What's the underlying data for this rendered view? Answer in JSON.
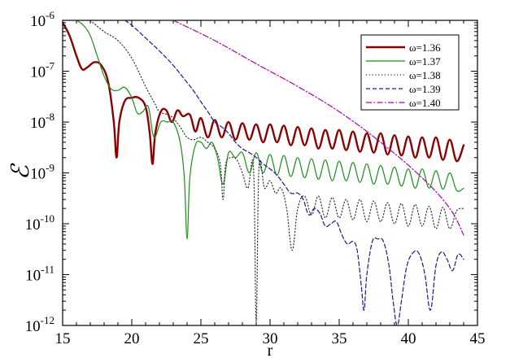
{
  "chart_data": {
    "type": "line",
    "title": "",
    "xlabel": "r",
    "ylabel": "ℰ",
    "xlim": [
      15,
      45
    ],
    "ylim": [
      1e-12,
      1e-06
    ],
    "yscale": "log",
    "grid": false,
    "legend_position": "top-right",
    "x_ticks": [
      {
        "value": 15,
        "label": "15"
      },
      {
        "value": 20,
        "label": "20"
      },
      {
        "value": 25,
        "label": "25"
      },
      {
        "value": 30,
        "label": "30"
      },
      {
        "value": 35,
        "label": "35"
      },
      {
        "value": 40,
        "label": "40"
      },
      {
        "value": 45,
        "label": "45"
      }
    ],
    "y_ticks": [
      {
        "value": 1e-12,
        "base": "10",
        "exp": "-12"
      },
      {
        "value": 1e-11,
        "base": "10",
        "exp": "-11"
      },
      {
        "value": 1e-10,
        "base": "10",
        "exp": "-10"
      },
      {
        "value": 1e-09,
        "base": "10",
        "exp": "-9"
      },
      {
        "value": 1e-08,
        "base": "10",
        "exp": "-8"
      },
      {
        "value": 1e-07,
        "base": "10",
        "exp": "-7"
      },
      {
        "value": 1e-06,
        "base": "10",
        "exp": "-6"
      }
    ],
    "series": [
      {
        "name": "ω=1.36",
        "color": "#8b0000",
        "style": "solid",
        "points": [
          [
            15.0,
            9e-07
          ],
          [
            15.5,
            5e-07
          ],
          [
            16.0,
            2e-07
          ],
          [
            16.4,
            1.1e-07
          ],
          [
            16.8,
            1.2e-07
          ],
          [
            17.3,
            1.5e-07
          ],
          [
            17.8,
            1.3e-07
          ],
          [
            18.3,
            6e-08
          ],
          [
            18.7,
            1e-08
          ],
          [
            18.9,
            2e-09
          ],
          [
            19.1,
            1e-08
          ],
          [
            19.5,
            2.6e-08
          ],
          [
            20.0,
            3e-08
          ],
          [
            20.5,
            3e-08
          ],
          [
            21.0,
            2e-08
          ],
          [
            21.3,
            6e-09
          ],
          [
            21.5,
            1.5e-09
          ],
          [
            21.7,
            6e-09
          ],
          [
            22.1,
            1.6e-08
          ],
          [
            22.5,
            1.7e-08
          ],
          [
            22.9,
            1e-08
          ],
          [
            23.3,
            1.7e-08
          ],
          [
            23.7,
            1.3e-08
          ],
          [
            24.2,
            1.4e-08
          ],
          [
            24.6,
            6.5e-09
          ],
          [
            25.0,
            1.2e-08
          ],
          [
            25.5,
            5e-09
          ],
          [
            26.0,
            1.1e-08
          ],
          [
            26.5,
            5e-09
          ],
          [
            27.0,
            1e-08
          ],
          [
            27.5,
            4.5e-09
          ],
          [
            28.0,
            9.5e-09
          ],
          [
            28.5,
            4.5e-09
          ],
          [
            29.0,
            9e-09
          ],
          [
            29.5,
            4e-09
          ],
          [
            30.0,
            9e-09
          ],
          [
            30.5,
            4e-09
          ],
          [
            31.0,
            8.5e-09
          ],
          [
            31.5,
            3.5e-09
          ],
          [
            32.0,
            8e-09
          ],
          [
            32.5,
            3.5e-09
          ],
          [
            33.0,
            7.5e-09
          ],
          [
            33.5,
            3e-09
          ],
          [
            34.0,
            7e-09
          ],
          [
            34.5,
            3e-09
          ],
          [
            35.0,
            7e-09
          ],
          [
            35.5,
            2.8e-09
          ],
          [
            36.0,
            6.5e-09
          ],
          [
            36.5,
            2.6e-09
          ],
          [
            37.0,
            6e-09
          ],
          [
            37.5,
            2.5e-09
          ],
          [
            38.0,
            6e-09
          ],
          [
            38.5,
            2.3e-09
          ],
          [
            39.0,
            5.5e-09
          ],
          [
            39.5,
            2.2e-09
          ],
          [
            40.0,
            5.2e-09
          ],
          [
            40.5,
            2e-09
          ],
          [
            41.0,
            5e-09
          ],
          [
            41.5,
            2e-09
          ],
          [
            42.0,
            5e-09
          ],
          [
            42.5,
            1.8e-09
          ],
          [
            43.0,
            4.5e-09
          ],
          [
            43.5,
            1.7e-09
          ],
          [
            44.0,
            3.5e-09
          ]
        ]
      },
      {
        "name": "ω=1.37",
        "color": "#1a8f1a",
        "style": "solid",
        "points": [
          [
            16.0,
            1e-06
          ],
          [
            16.5,
            8e-07
          ],
          [
            17.0,
            5e-07
          ],
          [
            17.5,
            2e-07
          ],
          [
            18.0,
            8e-08
          ],
          [
            18.5,
            4.5e-08
          ],
          [
            19.0,
            4.2e-08
          ],
          [
            19.5,
            4.8e-08
          ],
          [
            20.0,
            3e-08
          ],
          [
            20.4,
            1.5e-08
          ],
          [
            20.8,
            1.6e-08
          ],
          [
            21.2,
            2e-08
          ],
          [
            21.6,
            5e-09
          ],
          [
            22.1,
            1e-08
          ],
          [
            22.6,
            1e-08
          ],
          [
            23.0,
            1e-08
          ],
          [
            23.5,
            4e-09
          ],
          [
            23.8,
            8e-10
          ],
          [
            24.0,
            5e-11
          ],
          [
            24.2,
            8e-10
          ],
          [
            24.6,
            3.5e-09
          ],
          [
            25.0,
            4e-09
          ],
          [
            25.4,
            3e-09
          ],
          [
            25.8,
            4e-09
          ],
          [
            26.2,
            2e-09
          ],
          [
            26.6,
            6e-10
          ],
          [
            27.0,
            2.5e-09
          ],
          [
            27.5,
            2e-09
          ],
          [
            28.0,
            2.5e-09
          ],
          [
            28.5,
            1e-09
          ],
          [
            29.0,
            2.5e-09
          ],
          [
            29.5,
            1e-09
          ],
          [
            30.0,
            2.3e-09
          ],
          [
            30.5,
            9e-10
          ],
          [
            31.0,
            2.2e-09
          ],
          [
            31.5,
            8.5e-10
          ],
          [
            32.0,
            2e-09
          ],
          [
            32.5,
            8e-10
          ],
          [
            33.0,
            1.9e-09
          ],
          [
            33.5,
            7.5e-10
          ],
          [
            34.0,
            1.8e-09
          ],
          [
            34.5,
            7e-10
          ],
          [
            35.0,
            1.7e-09
          ],
          [
            35.5,
            7e-10
          ],
          [
            36.0,
            1.6e-09
          ],
          [
            36.5,
            6.5e-10
          ],
          [
            37.0,
            1.5e-09
          ],
          [
            37.5,
            6e-10
          ],
          [
            38.0,
            1.4e-09
          ],
          [
            38.5,
            6e-10
          ],
          [
            39.0,
            1.3e-09
          ],
          [
            39.5,
            5.5e-10
          ],
          [
            40.0,
            1.2e-09
          ],
          [
            40.5,
            5e-10
          ],
          [
            41.0,
            1.2e-09
          ],
          [
            41.5,
            5e-10
          ],
          [
            42.0,
            1.1e-09
          ],
          [
            42.5,
            4.8e-10
          ],
          [
            43.0,
            1e-09
          ],
          [
            43.5,
            4.5e-10
          ],
          [
            44.0,
            5e-10
          ]
        ]
      },
      {
        "name": "ω=1.38",
        "color": "#333333",
        "style": "dotted",
        "points": [
          [
            17.0,
            1e-06
          ],
          [
            18.0,
            6e-07
          ],
          [
            19.0,
            4e-07
          ],
          [
            20.0,
            1.8e-07
          ],
          [
            21.0,
            5e-08
          ],
          [
            21.6,
            2.5e-08
          ],
          [
            22.0,
            1.6e-08
          ],
          [
            22.6,
            1.4e-08
          ],
          [
            23.0,
            1.2e-08
          ],
          [
            23.5,
            8e-09
          ],
          [
            24.0,
            5e-09
          ],
          [
            24.5,
            4.5e-09
          ],
          [
            25.0,
            5e-09
          ],
          [
            25.5,
            4e-09
          ],
          [
            26.0,
            3e-09
          ],
          [
            26.4,
            1.5e-09
          ],
          [
            26.6,
            3e-10
          ],
          [
            26.8,
            1.5e-09
          ],
          [
            27.2,
            2e-09
          ],
          [
            27.6,
            1.8e-09
          ],
          [
            28.0,
            1e-09
          ],
          [
            28.4,
            5e-10
          ],
          [
            28.8,
            1.3e-09
          ],
          [
            29.0,
            1.2e-12
          ],
          [
            29.2,
            1.3e-09
          ],
          [
            29.6,
            5e-10
          ],
          [
            30.0,
            7e-10
          ],
          [
            30.4,
            4e-10
          ],
          [
            30.8,
            5e-10
          ],
          [
            31.2,
            2e-10
          ],
          [
            31.6,
            3e-11
          ],
          [
            32.0,
            2e-10
          ],
          [
            32.5,
            3.5e-10
          ],
          [
            33.0,
            1.5e-10
          ],
          [
            33.5,
            3.5e-10
          ],
          [
            34.0,
            1.3e-10
          ],
          [
            34.5,
            3.3e-10
          ],
          [
            35.0,
            1.3e-10
          ],
          [
            35.5,
            3e-10
          ],
          [
            36.0,
            1.2e-10
          ],
          [
            36.5,
            3e-10
          ],
          [
            37.0,
            1.1e-10
          ],
          [
            37.5,
            2.8e-10
          ],
          [
            38.0,
            1.1e-10
          ],
          [
            38.5,
            2.6e-10
          ],
          [
            39.0,
            1e-10
          ],
          [
            39.5,
            2.5e-10
          ],
          [
            40.0,
            9e-11
          ],
          [
            40.5,
            2.4e-10
          ],
          [
            41.0,
            9e-11
          ],
          [
            41.5,
            2.2e-10
          ],
          [
            42.0,
            8e-11
          ],
          [
            42.5,
            2.1e-10
          ],
          [
            43.0,
            8e-11
          ],
          [
            43.5,
            1.8e-10
          ],
          [
            44.0,
            2e-10
          ]
        ]
      },
      {
        "name": "ω=1.39",
        "color": "#1a1a8c",
        "style": "dashed",
        "points": [
          [
            19.5,
            1e-06
          ],
          [
            20.0,
            8e-07
          ],
          [
            21.0,
            4.5e-07
          ],
          [
            22.0,
            2.5e-07
          ],
          [
            23.0,
            1.3e-07
          ],
          [
            24.0,
            6e-08
          ],
          [
            24.5,
            4e-08
          ],
          [
            25.0,
            2.5e-08
          ],
          [
            25.5,
            1.6e-08
          ],
          [
            26.0,
            1e-08
          ],
          [
            26.5,
            8e-09
          ],
          [
            27.0,
            6e-09
          ],
          [
            27.5,
            4e-09
          ],
          [
            28.0,
            3e-09
          ],
          [
            28.5,
            2.5e-09
          ],
          [
            29.0,
            2e-09
          ],
          [
            29.5,
            1.5e-09
          ],
          [
            30.0,
            1.2e-09
          ],
          [
            30.5,
            9e-10
          ],
          [
            31.0,
            6e-10
          ],
          [
            31.5,
            4e-10
          ],
          [
            32.0,
            4e-10
          ],
          [
            32.4,
            3e-10
          ],
          [
            32.8,
            1.5e-10
          ],
          [
            33.2,
            2e-10
          ],
          [
            33.6,
            1.6e-10
          ],
          [
            34.0,
            9e-11
          ],
          [
            34.4,
            1e-10
          ],
          [
            34.8,
            1.1e-10
          ],
          [
            35.2,
            6e-11
          ],
          [
            35.6,
            4e-11
          ],
          [
            36.0,
            4.5e-11
          ],
          [
            36.3,
            3e-11
          ],
          [
            36.6,
            6e-12
          ],
          [
            36.8,
            2e-12
          ],
          [
            37.0,
            1e-11
          ],
          [
            37.4,
            4.5e-11
          ],
          [
            37.8,
            5e-11
          ],
          [
            38.2,
            4.5e-11
          ],
          [
            38.6,
            1.5e-11
          ],
          [
            38.9,
            3e-12
          ],
          [
            39.2,
            1e-12
          ],
          [
            39.5,
            3e-12
          ],
          [
            39.9,
            1.5e-11
          ],
          [
            40.4,
            2.8e-11
          ],
          [
            40.8,
            2.5e-11
          ],
          [
            41.2,
            1e-11
          ],
          [
            41.6,
            2e-12
          ],
          [
            42.0,
            1.5e-11
          ],
          [
            42.4,
            2.8e-11
          ],
          [
            42.8,
            2e-11
          ],
          [
            43.2,
            1.2e-11
          ],
          [
            43.6,
            2.5e-11
          ],
          [
            44.0,
            2e-11
          ]
        ]
      },
      {
        "name": "ω=1.40",
        "color": "#b000b0",
        "style": "dashdot",
        "points": [
          [
            23.0,
            1e-06
          ],
          [
            26.0,
            4e-07
          ],
          [
            29.0,
            1.4e-07
          ],
          [
            32.0,
            5e-08
          ],
          [
            35.0,
            1.6e-08
          ],
          [
            38.0,
            4e-09
          ],
          [
            41.0,
            8e-10
          ],
          [
            43.0,
            2e-10
          ],
          [
            44.0,
            6e-11
          ]
        ]
      }
    ]
  }
}
